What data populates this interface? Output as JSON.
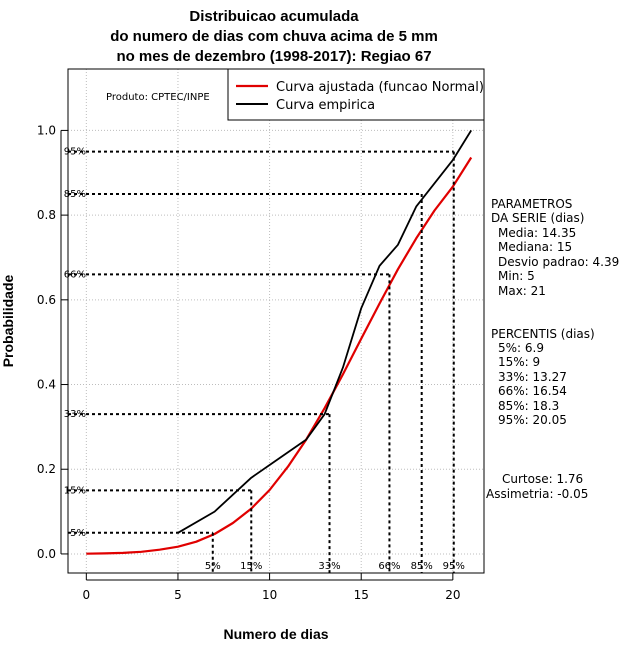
{
  "chart_data": {
    "type": "line",
    "title_lines": [
      "Distribuicao acumulada",
      "do numero de dias com chuva acima de 5 mm",
      "no mes de dezembro (1998-2017): Regiao 67"
    ],
    "xlabel": "Numero de dias",
    "ylabel": "Probabilidade",
    "xlim": [
      -1,
      21.7
    ],
    "ylim": [
      -0.045,
      1.145
    ],
    "xticks": [
      0,
      5,
      10,
      15,
      20
    ],
    "yticks": [
      0.0,
      0.2,
      0.4,
      0.6,
      0.8,
      1.0
    ],
    "xtick_labels": [
      "0",
      "5",
      "10",
      "15",
      "20"
    ],
    "ytick_labels": [
      "0.0",
      "0.2",
      "0.4",
      "0.6",
      "0.8",
      "1.0"
    ],
    "grid": true,
    "legend_position": "top-right",
    "source_note": "Produto: CPTEC/INPE",
    "series": [
      {
        "name": "Curva ajustada (funcao Normal)",
        "color": "#e00000",
        "x": [
          0,
          1,
          2,
          3,
          4,
          5,
          6,
          7,
          8,
          9,
          10,
          11,
          12,
          13,
          14,
          15,
          16,
          17,
          18,
          19,
          20,
          21
        ],
        "y": [
          0.0005,
          0.0012,
          0.0025,
          0.005,
          0.01,
          0.017,
          0.029,
          0.047,
          0.073,
          0.107,
          0.151,
          0.206,
          0.27,
          0.344,
          0.424,
          0.508,
          0.591,
          0.672,
          0.745,
          0.811,
          0.867,
          0.936
        ]
      },
      {
        "name": "Curva empirica",
        "color": "#000000",
        "x": [
          5,
          7,
          9,
          10,
          12,
          13,
          14,
          15,
          16,
          17,
          18,
          20,
          21
        ],
        "y": [
          0.05,
          0.1,
          0.18,
          0.21,
          0.27,
          0.33,
          0.44,
          0.58,
          0.68,
          0.73,
          0.82,
          0.93,
          1.0
        ]
      }
    ],
    "percentiles": [
      {
        "label": "5%",
        "p": 0.05,
        "x": 6.9
      },
      {
        "label": "15%",
        "p": 0.15,
        "x": 9
      },
      {
        "label": "33%",
        "p": 0.33,
        "x": 13.27
      },
      {
        "label": "66%",
        "p": 0.66,
        "x": 16.54
      },
      {
        "label": "85%",
        "p": 0.85,
        "x": 18.3
      },
      {
        "label": "95%",
        "p": 0.95,
        "x": 20.05
      }
    ],
    "params_title_lines": [
      "PARAMETROS",
      "DA SERIE (dias)"
    ],
    "params_lines": [
      "Media: 14.35",
      "Mediana: 15",
      "Desvio padrao: 4.39",
      "Min: 5",
      "Max: 21"
    ],
    "percentis_title": "PERCENTIS (dias)",
    "percentis_lines": [
      "5%: 6.9",
      "15%: 9",
      "33%: 13.27",
      "66%: 16.54",
      "85%: 18.3",
      "95%: 20.05"
    ],
    "shape_lines": [
      "Curtose: 1.76",
      "Assimetria: -0.05"
    ]
  }
}
